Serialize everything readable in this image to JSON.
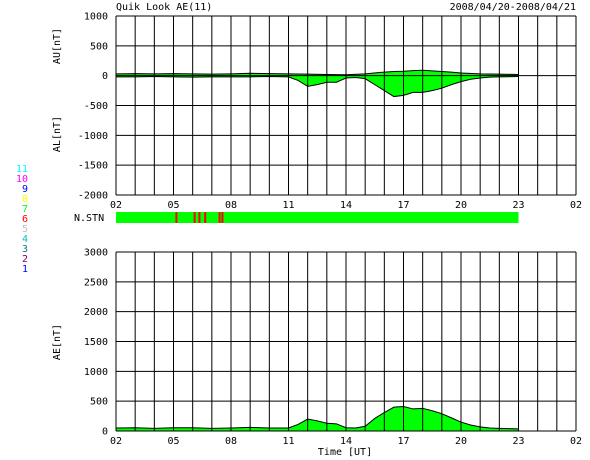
{
  "header": {
    "title": "Quik Look AE(11)",
    "date_range": "2008/04/20-2008/04/21"
  },
  "legend": {
    "station_counts": [
      "11",
      "10",
      "9",
      "8",
      "7",
      "6",
      "5",
      "4",
      "3",
      "2",
      "1"
    ],
    "colors": [
      "#00ffff",
      "#ff00ff",
      "#0000ff",
      "#ffff00",
      "#00ff00",
      "#ff0000",
      "#c0c0c0",
      "#00c0c0",
      "#008080",
      "#800080",
      "#0000ff"
    ]
  },
  "chart_data": [
    {
      "type": "area",
      "name": "AU/AL",
      "ylabel_upper": "AU[nT]",
      "ylabel_lower": "AL[nT]",
      "ylim": [
        -2000,
        1000
      ],
      "yticks": [
        "1000",
        "500",
        "0",
        "-500",
        "-1000",
        "-1500",
        "-2000"
      ],
      "xlim": [
        2,
        26
      ],
      "xticks": [
        "02",
        "05",
        "08",
        "11",
        "14",
        "17",
        "20",
        "23",
        "02"
      ],
      "grid": true,
      "fill_color": "#00ff00",
      "data_ends_at": 23,
      "au": {
        "x": [
          2,
          3,
          4,
          5,
          6,
          7,
          8,
          9,
          10,
          11,
          12,
          13,
          14,
          15,
          16,
          16.5,
          17,
          17.5,
          18,
          18.5,
          19,
          19.5,
          20,
          21,
          22,
          23
        ],
        "y": [
          30,
          35,
          30,
          35,
          30,
          25,
          30,
          40,
          35,
          30,
          25,
          20,
          15,
          30,
          60,
          70,
          75,
          85,
          90,
          80,
          70,
          60,
          45,
          30,
          25,
          20
        ]
      },
      "al": {
        "x": [
          2,
          3,
          4,
          5,
          6,
          7,
          8,
          9,
          10,
          11,
          11.5,
          12,
          12.5,
          13,
          13.5,
          14,
          14.5,
          15,
          15.5,
          16,
          16.5,
          17,
          17.5,
          18,
          18.5,
          19,
          19.5,
          20,
          20.5,
          21,
          21.5,
          22,
          23
        ],
        "y": [
          -20,
          -20,
          -15,
          -20,
          -25,
          -20,
          -20,
          -20,
          -15,
          -20,
          -80,
          -180,
          -150,
          -110,
          -110,
          -40,
          -30,
          -50,
          -150,
          -250,
          -350,
          -330,
          -280,
          -280,
          -250,
          -210,
          -150,
          -100,
          -60,
          -40,
          -25,
          -20,
          -15
        ]
      }
    },
    {
      "type": "bar",
      "name": "N.STN",
      "label": "N.STN",
      "xlim": [
        2,
        26
      ],
      "base_color": "#00ff00",
      "data_ends_at": 23,
      "markers": [
        {
          "x": 5.1,
          "color": "#ff0000"
        },
        {
          "x": 6.05,
          "color": "#ff0000"
        },
        {
          "x": 6.3,
          "color": "#ff0000"
        },
        {
          "x": 6.6,
          "color": "#ff0000"
        },
        {
          "x": 7.35,
          "color": "#ff0000"
        },
        {
          "x": 7.5,
          "color": "#ff0000"
        }
      ]
    },
    {
      "type": "area",
      "name": "AE",
      "ylabel": "AE[nT]",
      "xlabel": "Time [UT]",
      "ylim": [
        0,
        3000
      ],
      "yticks": [
        "3000",
        "2500",
        "2000",
        "1500",
        "1000",
        "500",
        "0"
      ],
      "xlim": [
        2,
        26
      ],
      "xticks": [
        "02",
        "05",
        "08",
        "11",
        "14",
        "17",
        "20",
        "23",
        "02"
      ],
      "grid": true,
      "fill_color": "#00ff00",
      "data_ends_at": 23,
      "x": [
        2,
        3,
        4,
        5,
        6,
        7,
        8,
        9,
        10,
        11,
        11.5,
        12,
        12.5,
        13,
        13.5,
        14,
        14.5,
        15,
        15.5,
        16,
        16.5,
        17,
        17.5,
        18,
        18.5,
        19,
        19.5,
        20,
        20.5,
        21,
        21.5,
        22,
        23
      ],
      "y": [
        50,
        55,
        45,
        55,
        55,
        45,
        50,
        60,
        50,
        50,
        110,
        200,
        170,
        130,
        120,
        55,
        50,
        80,
        210,
        310,
        400,
        410,
        370,
        380,
        340,
        290,
        220,
        150,
        100,
        70,
        50,
        45,
        35
      ]
    }
  ]
}
